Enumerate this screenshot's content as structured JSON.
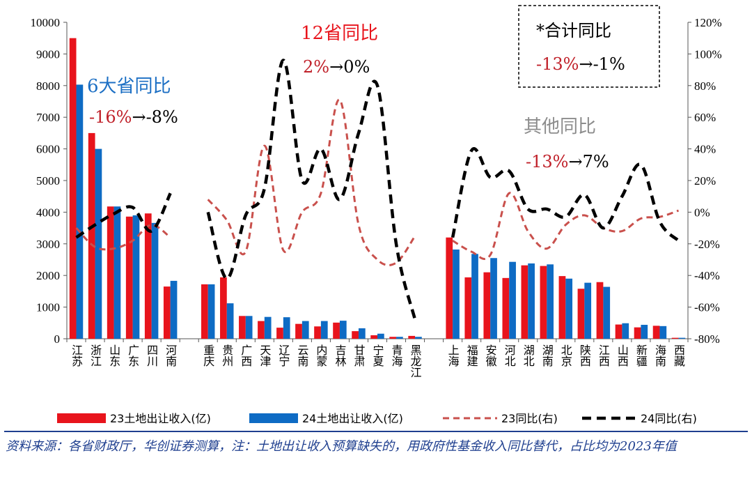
{
  "chart_data": {
    "type": "bar+line",
    "categories": [
      "江苏",
      "浙江",
      "山东",
      "广东",
      "四川",
      "河南",
      "",
      "重庆",
      "贵州",
      "广西",
      "天津",
      "辽宁",
      "云南",
      "内蒙",
      "吉林",
      "甘肃",
      "宁夏",
      "青海",
      "黑龙江",
      "",
      "上海",
      "福建",
      "安徽",
      "河北",
      "湖北",
      "湖南",
      "北京",
      "陕西",
      "江西",
      "山西",
      "新疆",
      "海南",
      "西藏"
    ],
    "series": [
      {
        "name": "23土地出让收入(亿)",
        "kind": "bar",
        "axis": "left",
        "color": "#e8141c",
        "values": [
          9500,
          6500,
          4180,
          3860,
          3960,
          1650,
          null,
          1720,
          1940,
          720,
          560,
          350,
          470,
          390,
          510,
          240,
          110,
          60,
          90,
          null,
          3200,
          1940,
          2100,
          1920,
          2320,
          2300,
          1980,
          1580,
          1790,
          450,
          360,
          410,
          30
        ]
      },
      {
        "name": "24土地出让收入(亿)",
        "kind": "bar",
        "axis": "left",
        "color": "#0e6bc4",
        "values": [
          8030,
          6000,
          4180,
          3900,
          3660,
          1830,
          null,
          1720,
          1120,
          720,
          690,
          680,
          560,
          560,
          570,
          330,
          160,
          60,
          60,
          null,
          2820,
          2680,
          2550,
          2430,
          2380,
          2350,
          1900,
          1770,
          1640,
          490,
          440,
          400,
          30
        ]
      },
      {
        "name": "23同比(右)",
        "kind": "line",
        "axis": "right",
        "color": "#c9504c",
        "dash": "dashed",
        "values": [
          -10,
          -22,
          -23,
          -18,
          -8,
          -16,
          null,
          8,
          -5,
          -25,
          42,
          -24,
          0,
          12,
          71,
          -8,
          -30,
          -32,
          -15,
          null,
          -18,
          -25,
          -27,
          12,
          -12,
          -23,
          -8,
          -2,
          -10,
          -12,
          -4,
          -3,
          1
        ]
      },
      {
        "name": "24同比(右)",
        "kind": "line",
        "axis": "right",
        "color": "#000000",
        "dash": "dashed",
        "values": [
          -16,
          -8,
          -1,
          3,
          -12,
          12,
          null,
          0,
          -42,
          -2,
          15,
          96,
          20,
          40,
          8,
          50,
          80,
          -20,
          -68,
          null,
          -16,
          39,
          22,
          26,
          2,
          2,
          -3,
          11,
          -10,
          10,
          30,
          -6,
          -18
        ]
      }
    ],
    "y_left": {
      "min": 0,
      "max": 10000,
      "ticks": [
        "0",
        "1000",
        "2000",
        "3000",
        "4000",
        "5000",
        "6000",
        "7000",
        "8000",
        "9000",
        "10000"
      ]
    },
    "y_right": {
      "min": -80,
      "max": 120,
      "ticks": [
        "-80%",
        "-60%",
        "-40%",
        "-20%",
        "0%",
        "20%",
        "40%",
        "60%",
        "80%",
        "100%",
        "120%"
      ]
    },
    "annotations": [
      {
        "title": "6大省同比",
        "from": "-16%",
        "arrow": "→",
        "to": "-8%",
        "title_color": "#1c6fc4"
      },
      {
        "title": "12省同比",
        "from": "2%",
        "arrow": "→",
        "to": "0%",
        "title_color": "#e8141c"
      },
      {
        "title": "*合计同比",
        "from": "-13%",
        "arrow": "→",
        "to": "-1%",
        "title_color": "#000000"
      },
      {
        "title": "其他同比",
        "from": "-13%",
        "arrow": "→",
        "to": "7%",
        "title_color": "#8c8c8c"
      }
    ],
    "value_color": "#c0212a",
    "legend": "bottom",
    "grid": false
  },
  "footer": {
    "source_text": "资料来源：各省财政厅，华创证券测算，注：土地出让收入预算缺失的，用政府性基金收入同比替代，占比均为2023年值"
  }
}
